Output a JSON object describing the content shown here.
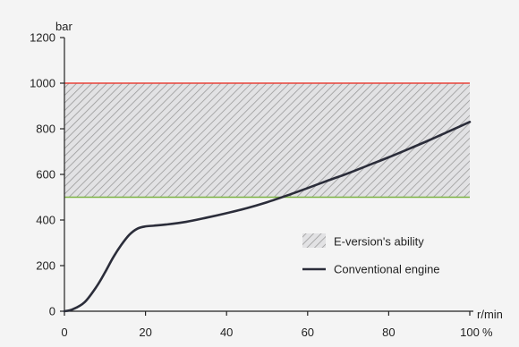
{
  "chart_data": {
    "type": "line",
    "title": "",
    "xlabel": "",
    "ylabel": "",
    "y_unit": "bar",
    "x_unit_top": "r/min",
    "x_unit_bottom": "%",
    "xlim": [
      0,
      100
    ],
    "ylim": [
      0,
      1200
    ],
    "x_ticks": [
      0,
      20,
      40,
      60,
      80,
      100
    ],
    "y_ticks": [
      0,
      200,
      400,
      600,
      800,
      1000,
      1200
    ],
    "x_tick_labels": [
      "0",
      "20",
      "40",
      "60",
      "80",
      "100"
    ],
    "y_tick_labels": [
      "0",
      "200",
      "400",
      "600",
      "800",
      "1000",
      "1200"
    ],
    "grid": false,
    "legend_position": "bottom-right",
    "band": {
      "name": "E-version's ability",
      "y_min": 500,
      "y_max": 1000,
      "upper_line_color": "#e8433a",
      "lower_line_color": "#7cb342",
      "hatch_color": "#9a9a9a"
    },
    "series": [
      {
        "name": "Conventional engine",
        "color": "#2b2d3a",
        "x": [
          0,
          2,
          5,
          8,
          10,
          12,
          14,
          16,
          18,
          20,
          22,
          25,
          30,
          35,
          40,
          45,
          50,
          55,
          60,
          65,
          70,
          75,
          80,
          85,
          90,
          95,
          100
        ],
        "y": [
          0,
          8,
          40,
          110,
          170,
          235,
          290,
          335,
          362,
          372,
          375,
          380,
          392,
          410,
          430,
          452,
          478,
          508,
          540,
          573,
          605,
          640,
          675,
          712,
          750,
          790,
          830
        ]
      }
    ]
  }
}
